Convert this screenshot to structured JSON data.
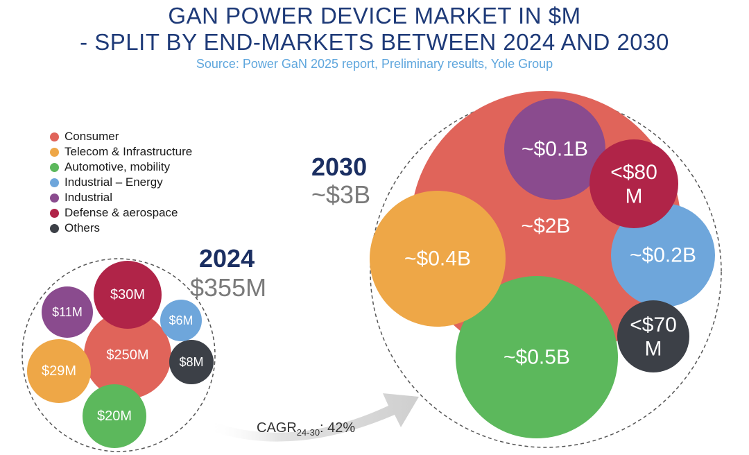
{
  "header": {
    "title_line1": "GAN POWER DEVICE MARKET IN $M",
    "title_line2": "- SPLIT BY END-MARKETS BETWEEN 2024 AND 2030",
    "source": "Source: Power GaN 2025 report, Preliminary results, Yole Group"
  },
  "chart_data": {
    "type": "bubble",
    "title": "GAN POWER DEVICE MARKET IN $M - SPLIT BY END-MARKETS BETWEEN 2024 AND 2030",
    "legend": [
      {
        "name": "Consumer",
        "color": "#e0645a"
      },
      {
        "name": "Telecom & Infrastructure",
        "color": "#eea747"
      },
      {
        "name": "Automotive, mobility",
        "color": "#5cb85c"
      },
      {
        "name": "Industrial – Energy",
        "color": "#6ea6db"
      },
      {
        "name": "Industrial",
        "color": "#8a4b8e"
      },
      {
        "name": "Defense & aerospace",
        "color": "#b02448"
      },
      {
        "name": "Others",
        "color": "#3c4047"
      }
    ],
    "years": [
      {
        "year": "2024",
        "total": "$355M",
        "segments": [
          {
            "segment": "Consumer",
            "label": "$250M",
            "value_musd": 250
          },
          {
            "segment": "Defense & aerospace",
            "label": "$30M",
            "value_musd": 30
          },
          {
            "segment": "Telecom & Infrastructure",
            "label": "$29M",
            "value_musd": 29
          },
          {
            "segment": "Automotive, mobility",
            "label": "$20M",
            "value_musd": 20
          },
          {
            "segment": "Industrial",
            "label": "$11M",
            "value_musd": 11
          },
          {
            "segment": "Others",
            "label": "$8M",
            "value_musd": 8
          },
          {
            "segment": "Industrial – Energy",
            "label": "$6M",
            "value_musd": 6
          }
        ]
      },
      {
        "year": "2030",
        "total": "~$3B",
        "segments": [
          {
            "segment": "Consumer",
            "label": "~$2B",
            "value_musd": 2000
          },
          {
            "segment": "Automotive, mobility",
            "label": "~$0.5B",
            "value_musd": 500
          },
          {
            "segment": "Telecom & Infrastructure",
            "label": "~$0.4B",
            "value_musd": 400
          },
          {
            "segment": "Industrial – Energy",
            "label": "~$0.2B",
            "value_musd": 200
          },
          {
            "segment": "Industrial",
            "label": "~$0.1B",
            "value_musd": 100
          },
          {
            "segment": "Defense & aerospace",
            "label": "<$80 M",
            "value_musd": 80
          },
          {
            "segment": "Others",
            "label": "<$70 M",
            "value_musd": 70
          }
        ]
      }
    ],
    "cagr": {
      "label": "CAGR",
      "period": "24-30",
      "value": ": 42%"
    }
  }
}
